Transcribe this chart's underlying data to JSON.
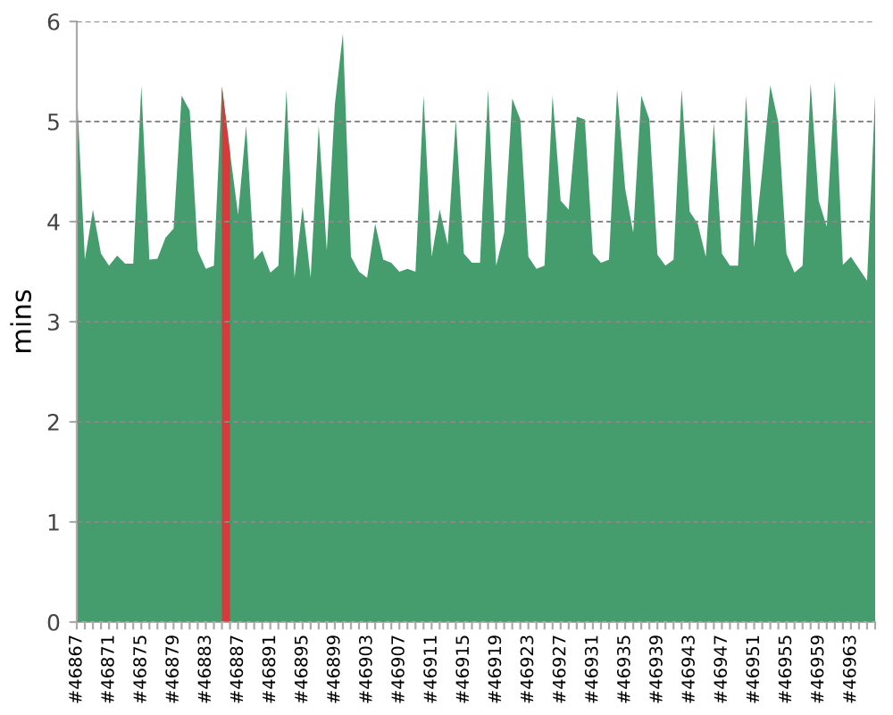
{
  "chart_data": {
    "type": "area",
    "ylabel": "mins",
    "categories": [
      "#46867",
      null,
      null,
      null,
      "#46871",
      null,
      null,
      null,
      "#46875",
      null,
      null,
      null,
      "#46879",
      null,
      null,
      null,
      "#46883",
      null,
      null,
      null,
      "#46887",
      null,
      null,
      null,
      "#46891",
      null,
      null,
      null,
      "#46895",
      null,
      null,
      null,
      "#46899",
      null,
      null,
      null,
      "#46903",
      null,
      null,
      null,
      "#46907",
      null,
      null,
      null,
      "#46911",
      null,
      null,
      null,
      "#46915",
      null,
      null,
      null,
      "#46919",
      null,
      null,
      null,
      "#46923",
      null,
      null,
      null,
      "#46927",
      null,
      null,
      null,
      "#46931",
      null,
      null,
      null,
      "#46935",
      null,
      null,
      null,
      "#46939",
      null,
      null,
      null,
      "#46943",
      null,
      null,
      null,
      "#46947",
      null,
      null,
      null,
      "#46951",
      null,
      null,
      null,
      "#46955",
      null,
      null,
      null,
      "#46959",
      null,
      null,
      null,
      "#46963",
      null,
      null,
      null
    ],
    "series": [
      {
        "color": "#459c6c",
        "values": [
          5.32,
          3.62,
          4.12,
          3.68,
          3.56,
          3.66,
          3.58,
          3.58,
          5.36,
          3.62,
          3.63,
          3.84,
          3.93,
          5.26,
          5.11,
          3.71,
          3.53,
          3.56,
          5.35,
          4.69,
          4.07,
          4.96,
          3.62,
          3.71,
          3.49,
          3.56,
          5.32,
          3.44,
          4.15,
          3.44,
          4.96,
          3.71,
          5.17,
          5.88,
          3.65,
          3.5,
          3.44,
          3.98,
          3.62,
          3.59,
          3.5,
          3.53,
          3.5,
          5.26,
          3.65,
          4.12,
          3.77,
          5.02,
          3.68,
          3.59,
          3.59,
          5.32,
          3.56,
          3.89,
          5.23,
          5.02,
          3.65,
          3.53,
          3.56,
          5.26,
          4.21,
          4.12,
          5.05,
          5.02,
          3.68,
          3.59,
          3.62,
          5.32,
          4.33,
          3.89,
          5.26,
          5.02,
          3.67,
          3.56,
          3.62,
          5.32,
          4.1,
          3.98,
          3.65,
          4.99,
          3.68,
          3.56,
          3.56,
          5.26,
          3.74,
          4.51,
          5.36,
          4.99,
          3.68,
          3.49,
          3.56,
          5.38,
          4.21,
          3.95,
          5.4,
          3.57,
          3.65,
          3.53,
          3.41,
          5.26
        ]
      },
      {
        "color": "#d63a3a",
        "values": [
          null,
          null,
          null,
          null,
          null,
          null,
          null,
          null,
          null,
          null,
          null,
          null,
          null,
          null,
          null,
          null,
          null,
          null,
          5.35,
          4.69,
          null,
          null,
          null,
          null,
          null,
          null,
          null,
          null,
          null,
          null,
          null,
          null,
          null,
          null,
          null,
          null,
          null,
          null,
          null,
          null,
          null,
          null,
          null,
          null,
          null,
          null,
          null,
          null,
          null,
          null,
          null,
          null,
          null,
          null,
          null,
          null,
          null,
          null,
          null,
          null,
          null,
          null,
          null,
          null,
          null,
          null,
          null,
          null,
          null,
          null,
          null,
          null,
          null,
          null,
          null,
          null,
          null,
          null,
          null,
          null,
          null,
          null,
          null,
          null,
          null,
          null,
          null,
          null,
          null,
          null,
          null,
          null,
          null,
          null,
          null,
          null,
          null,
          null,
          null,
          null
        ]
      }
    ],
    "ylim": [
      0,
      6
    ],
    "yticks": [
      0,
      1,
      2,
      3,
      4,
      5,
      6
    ],
    "grid": "y"
  }
}
